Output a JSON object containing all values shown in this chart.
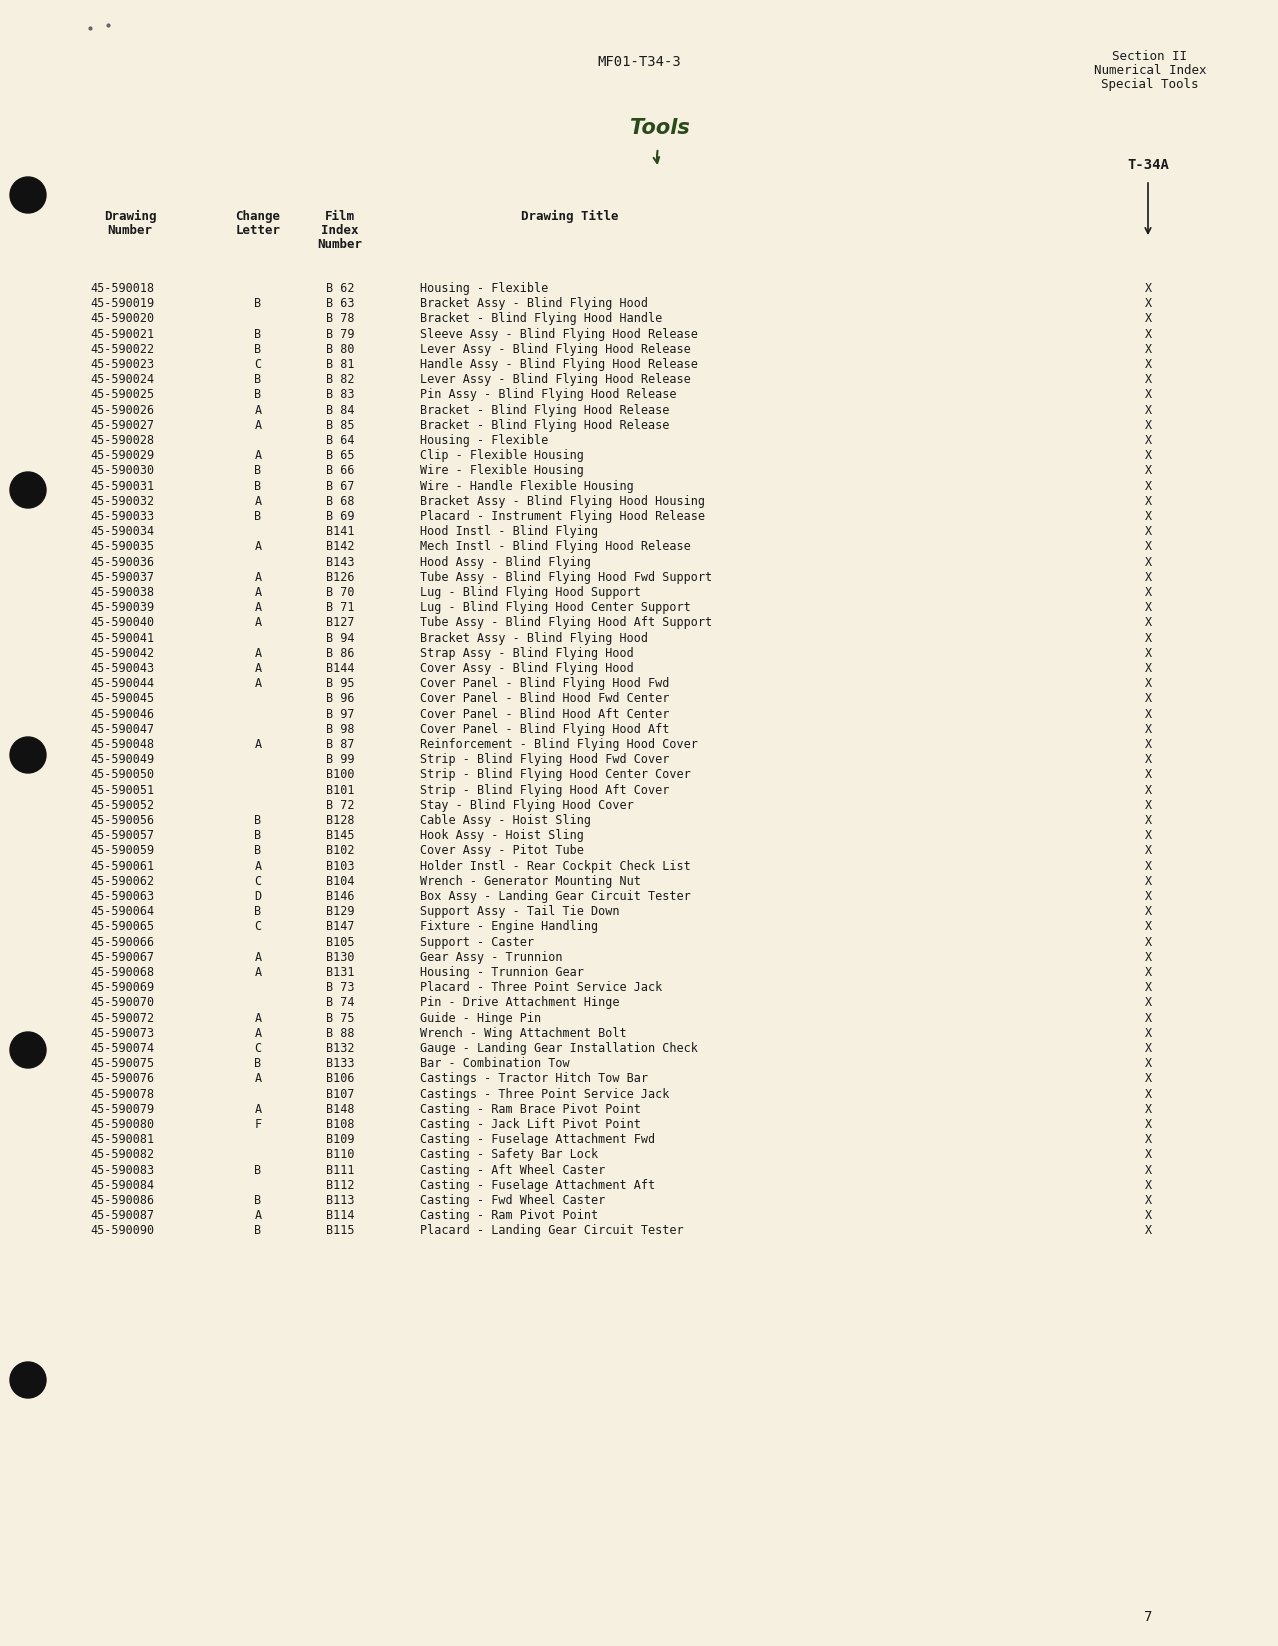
{
  "page_header_center": "MF01-T34-3",
  "page_header_right_line1": "Section II",
  "page_header_right_line2": "Numerical Index",
  "page_header_right_line3": "Special Tools",
  "handwritten_text": "Tools",
  "page_number": "7",
  "background_color": "#f5f0e0",
  "text_color": "#1a1a1a",
  "rows": [
    [
      "45-590018",
      "",
      "B 62",
      "Housing - Flexible",
      "X"
    ],
    [
      "45-590019",
      "B",
      "B 63",
      "Bracket Assy - Blind Flying Hood",
      "X"
    ],
    [
      "45-590020",
      "",
      "B 78",
      "Bracket - Blind Flying Hood Handle",
      "X"
    ],
    [
      "45-590021",
      "B",
      "B 79",
      "Sleeve Assy - Blind Flying Hood Release",
      "X"
    ],
    [
      "45-590022",
      "B",
      "B 80",
      "Lever Assy - Blind Flying Hood Release",
      "X"
    ],
    [
      "45-590023",
      "C",
      "B 81",
      "Handle Assy - Blind Flying Hood Release",
      "X"
    ],
    [
      "45-590024",
      "B",
      "B 82",
      "Lever Assy - Blind Flying Hood Release",
      "X"
    ],
    [
      "45-590025",
      "B",
      "B 83",
      "Pin Assy - Blind Flying Hood Release",
      "X"
    ],
    [
      "45-590026",
      "A",
      "B 84",
      "Bracket - Blind Flying Hood Release",
      "X"
    ],
    [
      "45-590027",
      "A",
      "B 85",
      "Bracket - Blind Flying Hood Release",
      "X"
    ],
    [
      "45-590028",
      "",
      "B 64",
      "Housing - Flexible",
      "X"
    ],
    [
      "45-590029",
      "A",
      "B 65",
      "Clip - Flexible Housing",
      "X"
    ],
    [
      "45-590030",
      "B",
      "B 66",
      "Wire - Flexible Housing",
      "X"
    ],
    [
      "45-590031",
      "B",
      "B 67",
      "Wire - Handle Flexible Housing",
      "X"
    ],
    [
      "45-590032",
      "A",
      "B 68",
      "Bracket Assy - Blind Flying Hood Housing",
      "X"
    ],
    [
      "45-590033",
      "B",
      "B 69",
      "Placard - Instrument Flying Hood Release",
      "X"
    ],
    [
      "45-590034",
      "",
      "B141",
      "Hood Instl - Blind Flying",
      "X"
    ],
    [
      "45-590035",
      "A",
      "B142",
      "Mech Instl - Blind Flying Hood Release",
      "X"
    ],
    [
      "45-590036",
      "",
      "B143",
      "Hood Assy - Blind Flying",
      "X"
    ],
    [
      "45-590037",
      "A",
      "B126",
      "Tube Assy - Blind Flying Hood Fwd Support",
      "X"
    ],
    [
      "45-590038",
      "A",
      "B 70",
      "Lug - Blind Flying Hood Support",
      "X"
    ],
    [
      "45-590039",
      "A",
      "B 71",
      "Lug - Blind Flying Hood Center Support",
      "X"
    ],
    [
      "45-590040",
      "A",
      "B127",
      "Tube Assy - Blind Flying Hood Aft Support",
      "X"
    ],
    [
      "45-590041",
      "",
      "B 94",
      "Bracket Assy - Blind Flying Hood",
      "X"
    ],
    [
      "45-590042",
      "A",
      "B 86",
      "Strap Assy - Blind Flying Hood",
      "X"
    ],
    [
      "45-590043",
      "A",
      "B144",
      "Cover Assy - Blind Flying Hood",
      "X"
    ],
    [
      "45-590044",
      "A",
      "B 95",
      "Cover Panel - Blind Flying Hood Fwd",
      "X"
    ],
    [
      "45-590045",
      "",
      "B 96",
      "Cover Panel - Blind Hood Fwd Center",
      "X"
    ],
    [
      "45-590046",
      "",
      "B 97",
      "Cover Panel - Blind Hood Aft Center",
      "X"
    ],
    [
      "45-590047",
      "",
      "B 98",
      "Cover Panel - Blind Flying Hood Aft",
      "X"
    ],
    [
      "45-590048",
      "A",
      "B 87",
      "Reinforcement - Blind Flying Hood Cover",
      "X"
    ],
    [
      "45-590049",
      "",
      "B 99",
      "Strip - Blind Flying Hood Fwd Cover",
      "X"
    ],
    [
      "45-590050",
      "",
      "B100",
      "Strip - Blind Flying Hood Center Cover",
      "X"
    ],
    [
      "45-590051",
      "",
      "B101",
      "Strip - Blind Flying Hood Aft Cover",
      "X"
    ],
    [
      "45-590052",
      "",
      "B 72",
      "Stay - Blind Flying Hood Cover",
      "X"
    ],
    [
      "45-590056",
      "B",
      "B128",
      "Cable Assy - Hoist Sling",
      "X"
    ],
    [
      "45-590057",
      "B",
      "B145",
      "Hook Assy - Hoist Sling",
      "X"
    ],
    [
      "45-590059",
      "B",
      "B102",
      "Cover Assy - Pitot Tube",
      "X"
    ],
    [
      "45-590061",
      "A",
      "B103",
      "Holder Instl - Rear Cockpit Check List",
      "X"
    ],
    [
      "45-590062",
      "C",
      "B104",
      "Wrench - Generator Mounting Nut",
      "X"
    ],
    [
      "45-590063",
      "D",
      "B146",
      "Box Assy - Landing Gear Circuit Tester",
      "X"
    ],
    [
      "45-590064",
      "B",
      "B129",
      "Support Assy - Tail Tie Down",
      "X"
    ],
    [
      "45-590065",
      "C",
      "B147",
      "Fixture - Engine Handling",
      "X"
    ],
    [
      "45-590066",
      "",
      "B105",
      "Support - Caster",
      "X"
    ],
    [
      "45-590067",
      "A",
      "B130",
      "Gear Assy - Trunnion",
      "X"
    ],
    [
      "45-590068",
      "A",
      "B131",
      "Housing - Trunnion Gear",
      "X"
    ],
    [
      "45-590069",
      "",
      "B 73",
      "Placard - Three Point Service Jack",
      "X"
    ],
    [
      "45-590070",
      "",
      "B 74",
      "Pin - Drive Attachment Hinge",
      "X"
    ],
    [
      "45-590072",
      "A",
      "B 75",
      "Guide - Hinge Pin",
      "X"
    ],
    [
      "45-590073",
      "A",
      "B 88",
      "Wrench - Wing Attachment Bolt",
      "X"
    ],
    [
      "45-590074",
      "C",
      "B132",
      "Gauge - Landing Gear Installation Check",
      "X"
    ],
    [
      "45-590075",
      "B",
      "B133",
      "Bar - Combination Tow",
      "X"
    ],
    [
      "45-590076",
      "A",
      "B106",
      "Castings - Tractor Hitch Tow Bar",
      "X"
    ],
    [
      "45-590078",
      "",
      "B107",
      "Castings - Three Point Service Jack",
      "X"
    ],
    [
      "45-590079",
      "A",
      "B148",
      "Casting - Ram Brace Pivot Point",
      "X"
    ],
    [
      "45-590080",
      "F",
      "B108",
      "Casting - Jack Lift Pivot Point",
      "X"
    ],
    [
      "45-590081",
      "",
      "B109",
      "Casting - Fuselage Attachment Fwd",
      "X"
    ],
    [
      "45-590082",
      "",
      "B110",
      "Casting - Safety Bar Lock",
      "X"
    ],
    [
      "45-590083",
      "B",
      "B111",
      "Casting - Aft Wheel Caster",
      "X"
    ],
    [
      "45-590084",
      "",
      "B112",
      "Casting - Fuselage Attachment Aft",
      "X"
    ],
    [
      "45-590086",
      "B",
      "B113",
      "Casting - Fwd Wheel Caster",
      "X"
    ],
    [
      "45-590087",
      "A",
      "B114",
      "Casting - Ram Pivot Point",
      "X"
    ],
    [
      "45-590090",
      "B",
      "B115",
      "Placard - Landing Gear Circuit Tester",
      "X"
    ]
  ]
}
